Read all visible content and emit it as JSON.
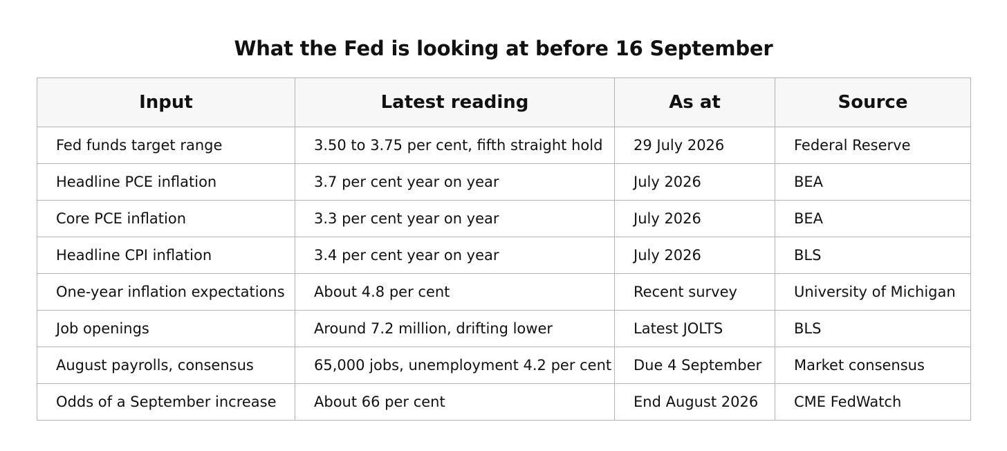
{
  "title": "What the Fed is looking at before 16 September",
  "table": {
    "headers": [
      "Input",
      "Latest reading",
      "As at",
      "Source"
    ],
    "rows": [
      [
        "Fed funds target range",
        "3.50 to 3.75 per cent, fifth straight hold",
        "29 July 2026",
        "Federal Reserve"
      ],
      [
        "Headline PCE inflation",
        "3.7 per cent year on year",
        "July 2026",
        "BEA"
      ],
      [
        "Core PCE inflation",
        "3.3 per cent year on year",
        "July 2026",
        "BEA"
      ],
      [
        "Headline CPI inflation",
        "3.4 per cent year on year",
        "July 2026",
        "BLS"
      ],
      [
        "One-year inflation expectations",
        "About 4.8 per cent",
        "Recent survey",
        "University of Michigan"
      ],
      [
        "Job openings",
        "Around 7.2 million, drifting lower",
        "Latest JOLTS",
        "BLS"
      ],
      [
        "August payrolls, consensus",
        "65,000 jobs, unemployment 4.2 per cent",
        "Due 4 September",
        "Market consensus"
      ],
      [
        "Odds of a September increase",
        "About 66 per cent",
        "End August 2026",
        "CME FedWatch"
      ]
    ]
  }
}
